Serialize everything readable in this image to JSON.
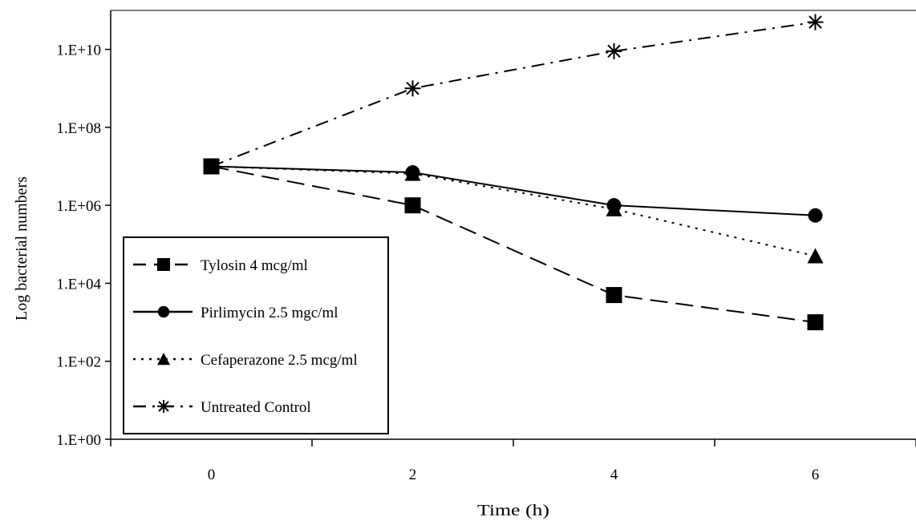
{
  "chart_data": {
    "type": "line",
    "title": "",
    "xlabel": "Time (h)",
    "ylabel": "Log bacterial numbers",
    "x": [
      0,
      2,
      4,
      6
    ],
    "xlim": [
      -1,
      7
    ],
    "ylim": [
      1,
      100000000000.0
    ],
    "y_scale": "log",
    "y_ticks": [
      {
        "value": 1,
        "label": "1.E+00"
      },
      {
        "value": 100,
        "label": "1.E+02"
      },
      {
        "value": 10000,
        "label": "1.E+04"
      },
      {
        "value": 1000000,
        "label": "1.E+06"
      },
      {
        "value": 100000000,
        "label": "1.E+08"
      },
      {
        "value": 10000000000,
        "label": "1.E+10"
      }
    ],
    "x_ticks": [
      {
        "value": 0,
        "label": "0"
      },
      {
        "value": 2,
        "label": "2"
      },
      {
        "value": 4,
        "label": "4"
      },
      {
        "value": 6,
        "label": "6"
      }
    ],
    "grid": false,
    "legend_position": "bottom-left",
    "series": [
      {
        "name": "Tylosin 4 mcg/ml",
        "marker": "square",
        "line_style": "dashed",
        "values": [
          10000000,
          1000000,
          5000,
          1000
        ]
      },
      {
        "name": "Pirlimycin 2.5 mgc/ml",
        "marker": "circle",
        "line_style": "solid",
        "values": [
          10000000,
          7000000,
          1000000,
          550000
        ]
      },
      {
        "name": "Cefaperazone 2.5 mcg/ml",
        "marker": "triangle",
        "line_style": "dotted",
        "values": [
          10000000,
          6500000,
          800000,
          50000
        ]
      },
      {
        "name": "Untreated Control",
        "marker": "asterisk",
        "line_style": "dash-dot",
        "values": [
          10000000,
          1000000000,
          9000000000,
          50000000000
        ]
      }
    ]
  }
}
